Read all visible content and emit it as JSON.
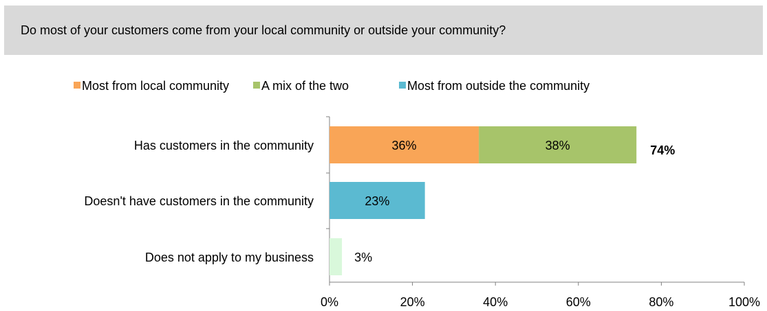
{
  "question": "Do most of your customers come from your local community or outside your community?",
  "chart_data": {
    "type": "bar",
    "orientation": "horizontal",
    "stacked": true,
    "title": "",
    "xlabel": "",
    "ylabel": "",
    "xlim": [
      0,
      100
    ],
    "x_ticks": [
      "0%",
      "20%",
      "40%",
      "60%",
      "80%",
      "100%"
    ],
    "categories": [
      "Has customers in the community",
      "Doesn't have customers in the community",
      "Does not apply to my business"
    ],
    "series": [
      {
        "name": "Most from local community",
        "color": "#f9a557",
        "values": [
          36,
          null,
          null
        ],
        "labels": [
          "36%",
          null,
          null
        ]
      },
      {
        "name": "A mix of the two",
        "color": "#a7c46a",
        "values": [
          38,
          null,
          null
        ],
        "labels": [
          "38%",
          null,
          null
        ]
      },
      {
        "name": "Most from outside the community",
        "color": "#5bbad1",
        "values": [
          null,
          23,
          null
        ],
        "labels": [
          null,
          "23%",
          null
        ]
      },
      {
        "name": "",
        "color": "#d9f8db",
        "values": [
          null,
          null,
          3
        ],
        "labels": [
          null,
          null,
          "3%"
        ]
      }
    ],
    "totals": [
      "74%",
      null,
      null
    ],
    "legend_position": "top",
    "grid": false
  }
}
